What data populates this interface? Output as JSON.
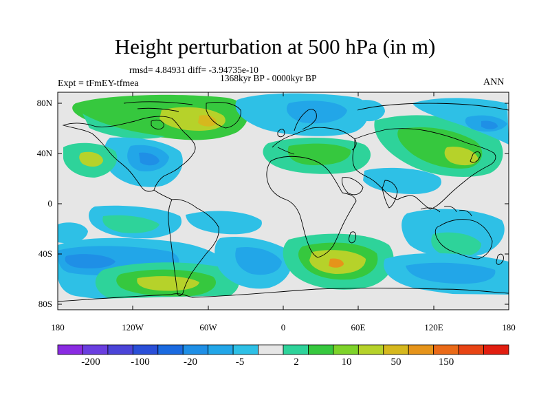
{
  "header": {
    "title": "Height perturbation at 500 hPa (in m)",
    "stats": "rmsd= 4.84931 diff= -3.94735e-10",
    "period": "1368kyr BP - 0000kyr BP",
    "experiment": "Expt = tFmEY-tfmea",
    "season": "ANN"
  },
  "axes": {
    "lat_labels": [
      "80N",
      "40N",
      "0",
      "40S",
      "80S"
    ],
    "lon_labels": [
      "180",
      "120W",
      "60W",
      "0",
      "60E",
      "120E",
      "180"
    ]
  },
  "colorbar": {
    "labels": [
      "-200",
      "-100",
      "-20",
      "-5",
      "2",
      "10",
      "50",
      "150"
    ],
    "colors": [
      "#8a2be2",
      "#6a3ee0",
      "#4b44d8",
      "#2a4fd8",
      "#1a6ae0",
      "#1f8fe6",
      "#22a6e8",
      "#2ec0e6",
      "#e6e6e6",
      "#2ed39a",
      "#36c83e",
      "#7ed32a",
      "#b6d22a",
      "#d6b81e",
      "#e6941a",
      "#ea6a18",
      "#e84414",
      "#e21e10"
    ]
  },
  "field_colors": {
    "land_outline": "#000000",
    "neutral": "#e6e6e6",
    "cyan": "#2ec0e6",
    "light_blue": "#22a6e8",
    "blue": "#1f8fe6",
    "dark_blue": "#1a6ae0",
    "teal": "#2ed39a",
    "green": "#36c83e",
    "yellow_green": "#b6d22a",
    "orange": "#e6941a"
  }
}
